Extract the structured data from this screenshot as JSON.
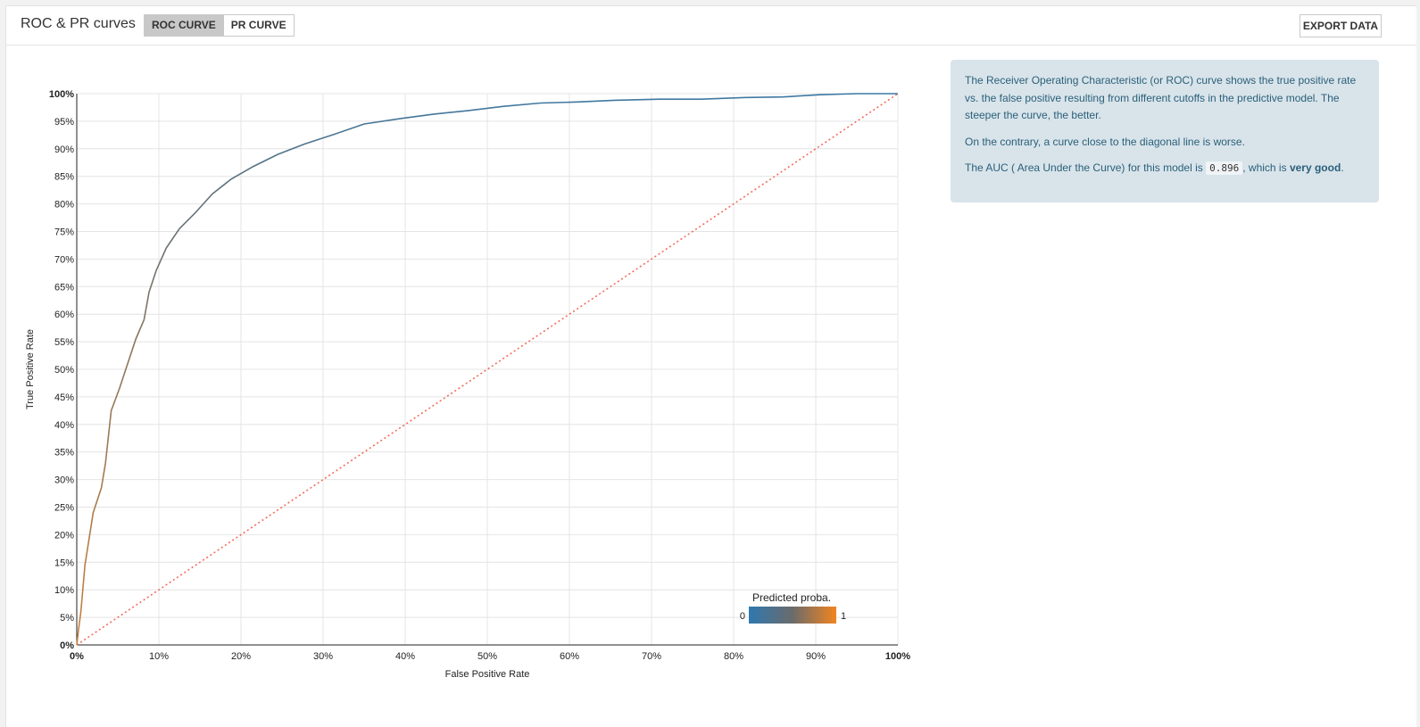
{
  "header": {
    "title": "ROC & PR curves",
    "tabs": [
      {
        "label": "ROC CURVE",
        "active": true
      },
      {
        "label": "PR CURVE",
        "active": false
      }
    ],
    "export_label": "EXPORT DATA"
  },
  "info": {
    "p1": "The Receiver Operating Characteristic (or ROC) curve shows the true positive rate vs. the false positive resulting from different cutoffs in the predictive model. The steeper the curve, the better.",
    "p2": "On the contrary, a curve close to the diagonal line is worse.",
    "p3_before": "The AUC ( Area Under the Curve) for this model is",
    "auc_value": "0.896",
    "p3_middle": ", which is",
    "p3_rating": "very good",
    "p3_end": "."
  },
  "legend": {
    "title": "Predicted proba.",
    "min_label": "0",
    "max_label": "1",
    "color_low": "#2e78b0",
    "color_high": "#f28420"
  },
  "chart_data": {
    "type": "line",
    "xlabel": "False Positive Rate",
    "ylabel": "True Positive Rate",
    "xlim": [
      0,
      100
    ],
    "ylim": [
      0,
      100
    ],
    "x_ticks": [
      "0%",
      "10%",
      "20%",
      "30%",
      "40%",
      "50%",
      "60%",
      "70%",
      "80%",
      "90%",
      "100%"
    ],
    "y_ticks": [
      "0%",
      "5%",
      "10%",
      "15%",
      "20%",
      "25%",
      "30%",
      "35%",
      "40%",
      "45%",
      "50%",
      "55%",
      "60%",
      "65%",
      "70%",
      "75%",
      "80%",
      "85%",
      "90%",
      "95%",
      "100%"
    ],
    "grid": true,
    "series": [
      {
        "x": [
          0,
          0.2,
          0.5,
          1.0,
          2.0,
          3.0,
          3.5,
          4.2,
          5.2,
          6.2,
          7.2,
          8.2,
          8.8,
          9.7,
          10.9,
          12.5,
          14.5,
          16.5,
          18.8,
          21.5,
          24.5,
          27.8,
          31.5,
          35.0,
          39.5,
          43.5,
          47.5,
          52.0,
          56.5,
          61.0,
          65.5,
          71.0,
          76.0,
          81.5,
          86.0,
          90.5,
          95.0,
          100.0
        ],
        "y": [
          0,
          2.5,
          6.0,
          14.5,
          24.0,
          28.5,
          33.0,
          42.5,
          46.5,
          51.0,
          55.5,
          59.0,
          64.0,
          68.0,
          72.0,
          75.5,
          78.5,
          81.8,
          84.5,
          86.8,
          89.0,
          90.9,
          92.7,
          94.5,
          95.5,
          96.3,
          96.9,
          97.7,
          98.3,
          98.5,
          98.8,
          99.0,
          99.0,
          99.3,
          99.4,
          99.8,
          100.0,
          100.0
        ]
      }
    ],
    "baseline": {
      "x": [
        0,
        100
      ],
      "y": [
        0,
        100
      ],
      "color": "#f26c5b",
      "style": "dotted"
    }
  }
}
